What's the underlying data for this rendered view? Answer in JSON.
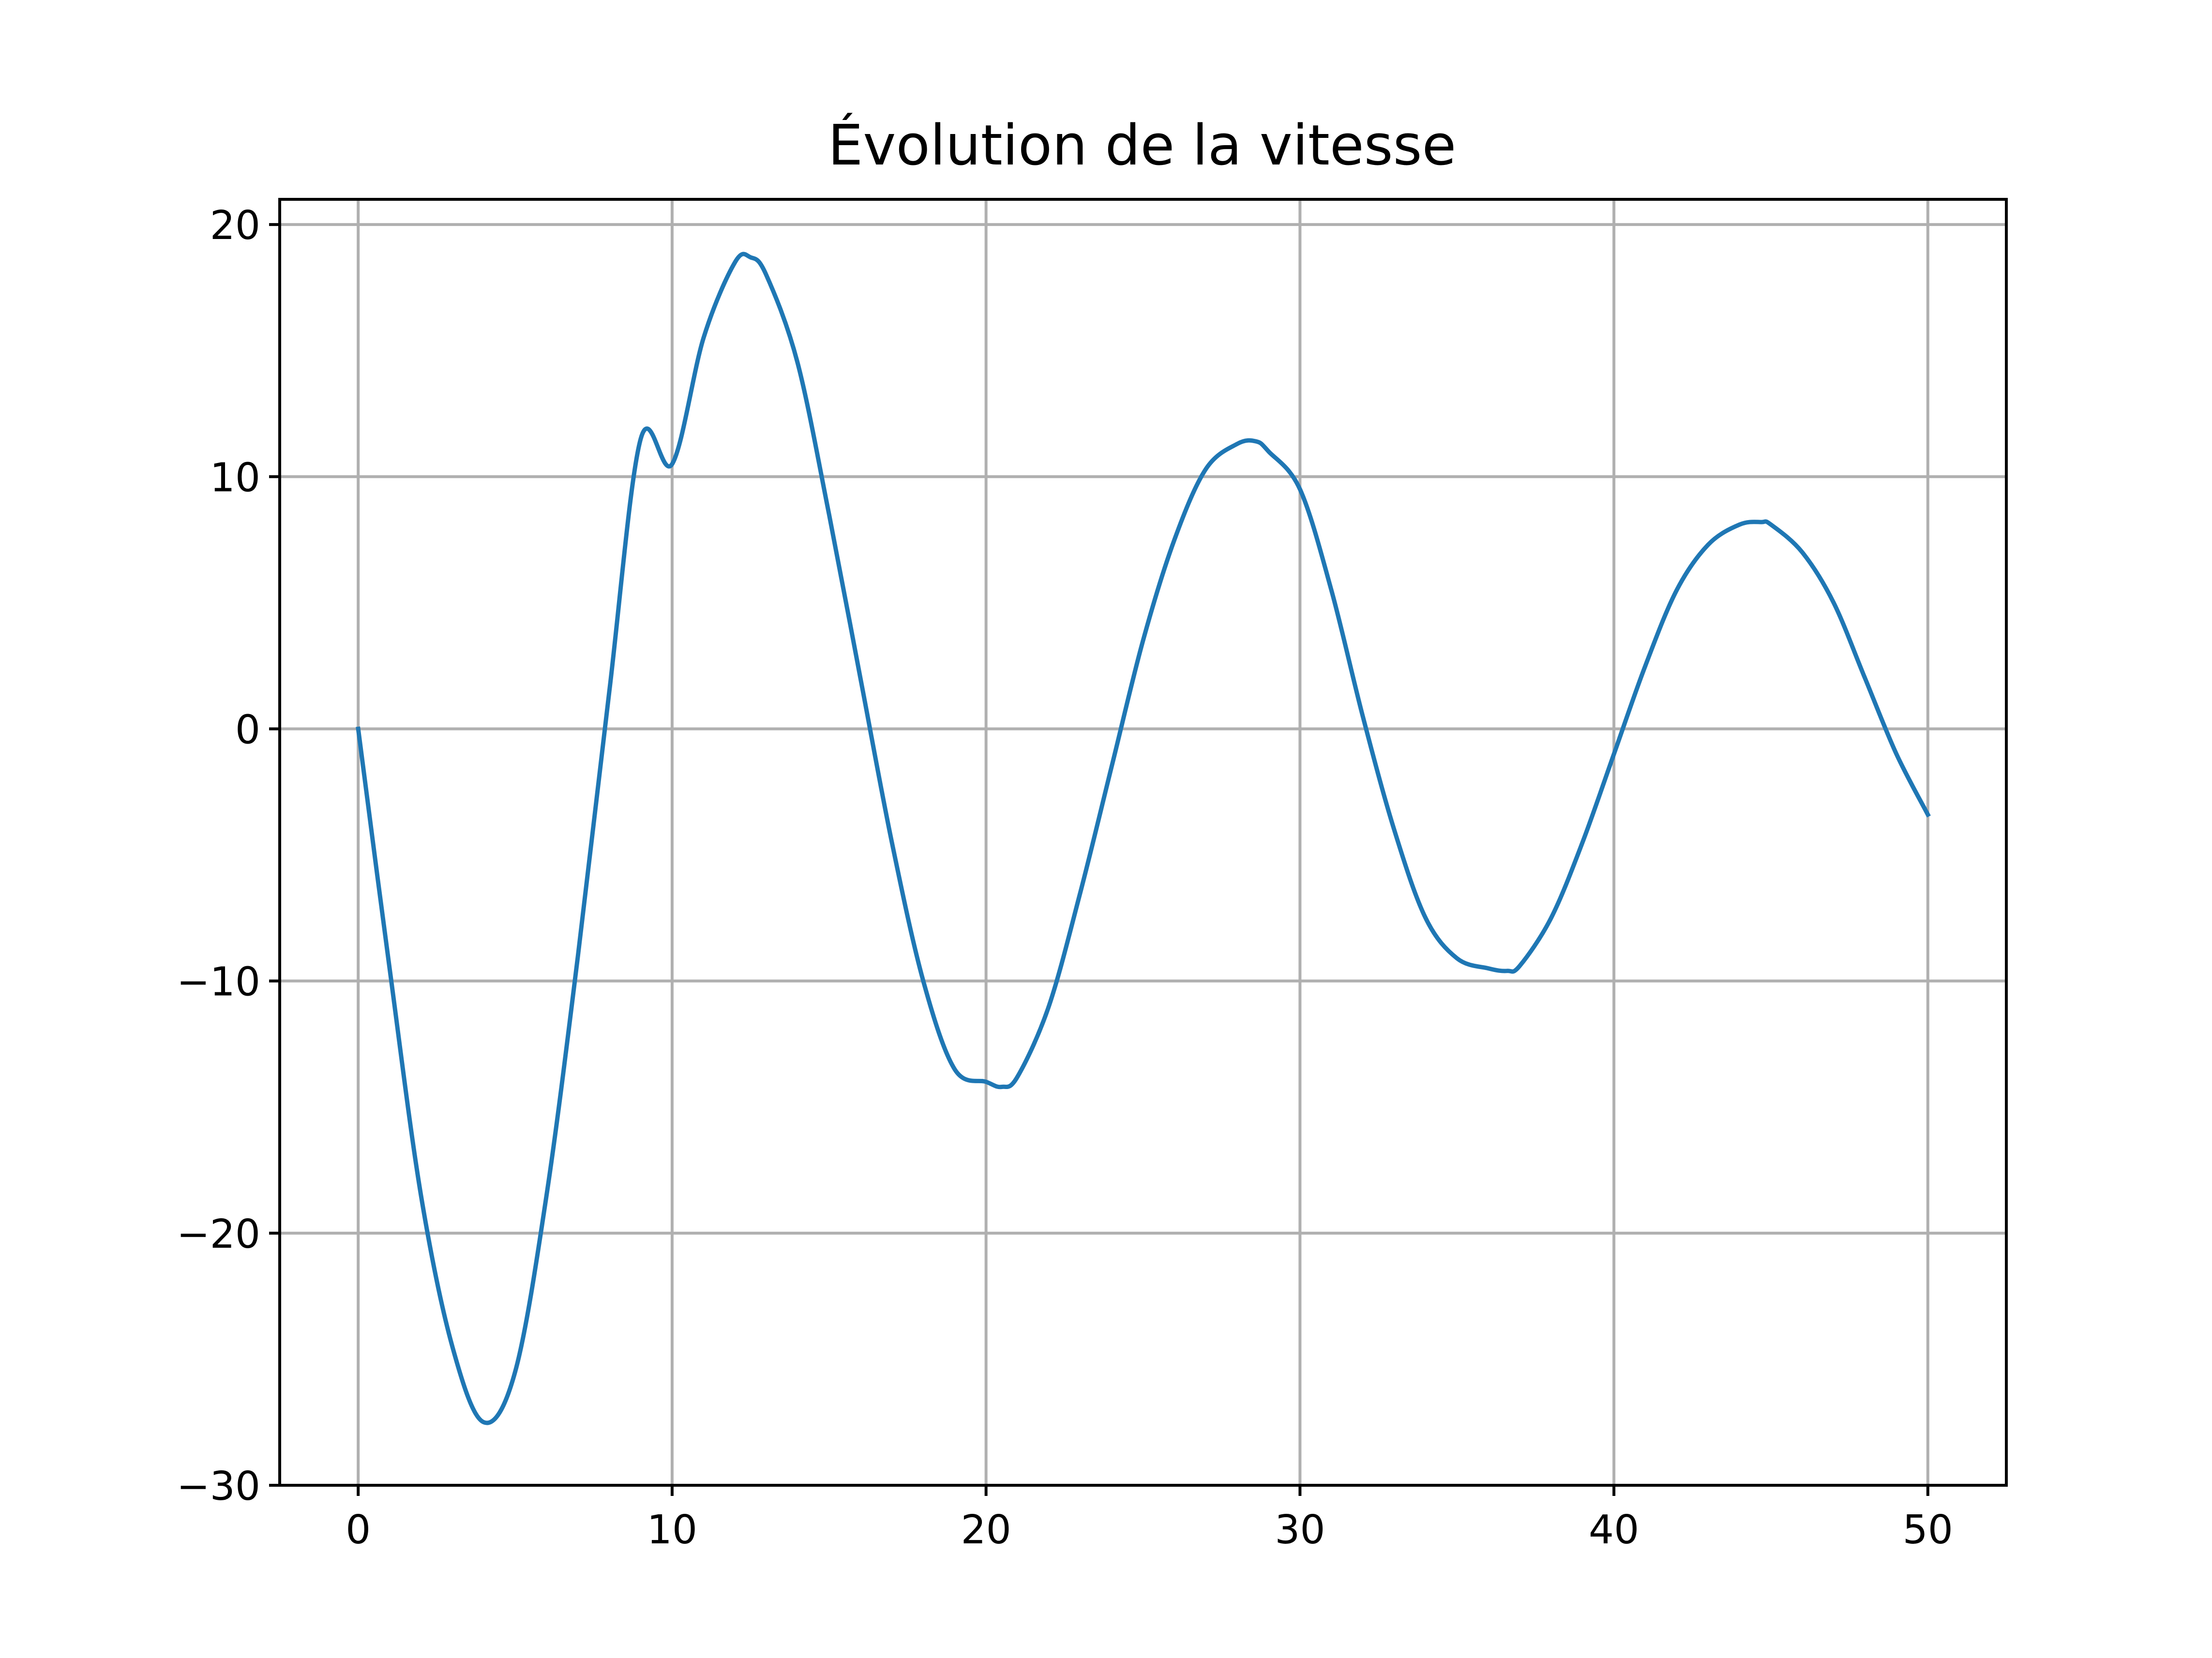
{
  "chart_data": {
    "type": "line",
    "title": "Évolution de la vitesse",
    "xlabel": "",
    "ylabel": "",
    "xlim": [
      -2.5,
      52.5
    ],
    "ylim": [
      -30,
      21
    ],
    "x_ticks": [
      0,
      10,
      20,
      30,
      40,
      50
    ],
    "x_tick_labels": [
      "0",
      "10",
      "20",
      "30",
      "40",
      "50"
    ],
    "y_ticks": [
      -30,
      -20,
      -10,
      0,
      10,
      20
    ],
    "y_tick_labels": [
      "−30",
      "−20",
      "−10",
      "0",
      "10",
      "20"
    ],
    "grid": true,
    "legend": false,
    "series": [
      {
        "color": "#1f77b4",
        "x": [
          0,
          1,
          2,
          3,
          4,
          5,
          6,
          7,
          8,
          9,
          10,
          11,
          12,
          12.5,
          13,
          14,
          15,
          16,
          17,
          18,
          19,
          20,
          20.5,
          21,
          22,
          23,
          24,
          25,
          26,
          27,
          28,
          28.6,
          29,
          30,
          31,
          32,
          33,
          34,
          35,
          36,
          36.6,
          37,
          38,
          39,
          40,
          41,
          42,
          43,
          44,
          44.7,
          45,
          46,
          47,
          48,
          49,
          50
        ],
        "y": [
          0,
          -9.5,
          -18.5,
          -24.5,
          -27.5,
          -25.5,
          -18.5,
          -9,
          1.5,
          11.5,
          10.5,
          15.5,
          18.5,
          18.7,
          18,
          14.5,
          8.5,
          2,
          -4.5,
          -10,
          -13.5,
          -14,
          -14.2,
          -13.8,
          -11,
          -6.5,
          -1.5,
          3.5,
          7.5,
          10.3,
          11.3,
          11.4,
          11,
          9.5,
          5.5,
          0.5,
          -4,
          -7.5,
          -9.1,
          -9.5,
          -9.6,
          -9.4,
          -7.5,
          -4.5,
          -1,
          2.5,
          5.5,
          7.3,
          8.1,
          8.2,
          8.1,
          7,
          5,
          2,
          -1,
          -3.4
        ]
      }
    ]
  }
}
